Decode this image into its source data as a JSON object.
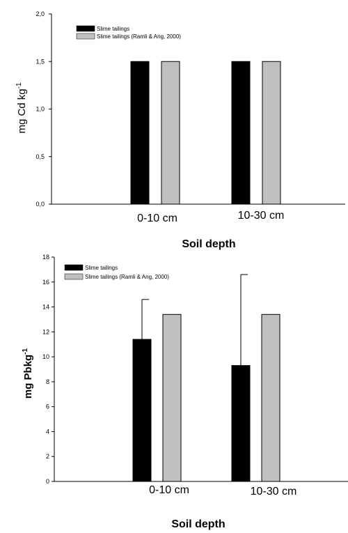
{
  "chart_data": [
    {
      "type": "bar",
      "categories": [
        "0-10 cm",
        "10-30 cm"
      ],
      "series": [
        {
          "name": "Slime tailings",
          "values": [
            1.5,
            1.5
          ],
          "color": "#000000"
        },
        {
          "name": "Slime tailings (Ramli & Ang, 2000)",
          "values": [
            1.5,
            1.5
          ],
          "color": "#c0c0c0"
        }
      ],
      "xlabel": "Soil depth",
      "ylabel": "mg Cd kg",
      "ylabel_sup": "-1",
      "ylim": [
        0,
        2.0
      ],
      "yticks": [
        "0,0",
        "0,5",
        "1,0",
        "1,5",
        "2,0"
      ],
      "grid": false,
      "legend": "top-left"
    },
    {
      "type": "bar",
      "categories": [
        "0-10 cm",
        "10-30 cm"
      ],
      "series": [
        {
          "name": "Slime tailings",
          "values": [
            11.4,
            9.3
          ],
          "error_plus": [
            3.2,
            7.3
          ],
          "color": "#000000"
        },
        {
          "name": "Slime tailings (Ramli & Ang, 2000)",
          "values": [
            13.4,
            13.4
          ],
          "color": "#c0c0c0"
        }
      ],
      "xlabel": "Soil depth",
      "ylabel": "mg Pbkg",
      "ylabel_sup": "-1",
      "ylim": [
        0,
        18
      ],
      "yticks": [
        "0",
        "2",
        "4",
        "6",
        "8",
        "10",
        "12",
        "14",
        "16",
        "18"
      ],
      "grid": false,
      "legend": "top-left"
    }
  ]
}
